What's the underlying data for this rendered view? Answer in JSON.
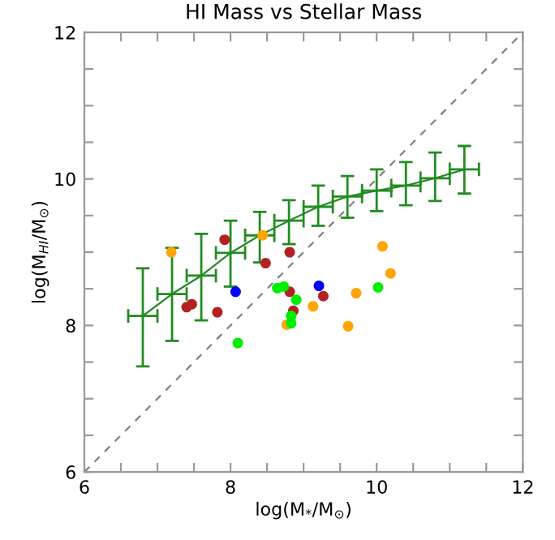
{
  "chart_data": {
    "type": "scatter",
    "title": "HI Mass vs Stellar Mass",
    "xlabel": "log(M$_{*}$/M$_{⊙}$)",
    "ylabel": "log(M$_{HI}$/M$_{⊙}$)",
    "xlim": [
      6,
      12
    ],
    "ylim": [
      6,
      12
    ],
    "xticks": [
      6,
      {
        "value": 6.5,
        "label": null
      },
      {
        "value": 7,
        "label": null
      },
      {
        "value": 7.5,
        "label": null
      },
      8,
      {
        "value": 8.5,
        "label": null
      },
      {
        "value": 9,
        "label": null
      },
      {
        "value": 9.5,
        "label": null
      },
      10,
      {
        "value": 10.5,
        "label": null
      },
      {
        "value": 11,
        "label": null
      },
      {
        "value": 11.5,
        "label": null
      },
      12
    ],
    "yticks": [
      6,
      {
        "value": 6.5,
        "label": null
      },
      {
        "value": 7,
        "label": null
      },
      {
        "value": 7.5,
        "label": null
      },
      8,
      {
        "value": 8.5,
        "label": null
      },
      {
        "value": 9,
        "label": null
      },
      {
        "value": 9.5,
        "label": null
      },
      10,
      {
        "value": 10.5,
        "label": null
      },
      {
        "value": 11,
        "label": null
      },
      {
        "value": 11.5,
        "label": null
      },
      12
    ],
    "grid": false,
    "legend": false,
    "marker": "circle",
    "series": [
      {
        "type": "line",
        "color": "#808080",
        "line_style": "dashed",
        "marker": "none",
        "x": [
          6,
          12
        ],
        "values": [
          6,
          12
        ]
      },
      {
        "type": "line",
        "color": "#228b22",
        "line_style": "solid",
        "marker": "none",
        "x": [
          6.8,
          7.2,
          7.6,
          8.0,
          8.4,
          8.8,
          9.2,
          9.6,
          10.0,
          10.4,
          10.8,
          11.2
        ],
        "values": [
          8.13,
          8.43,
          8.68,
          8.99,
          9.23,
          9.43,
          9.62,
          9.76,
          9.84,
          9.91,
          10.01,
          10.13
        ],
        "errors": [
          [
            7.44,
            8.78
          ],
          [
            7.79,
            9.06
          ],
          [
            8.07,
            9.25
          ],
          [
            8.53,
            9.43
          ],
          [
            8.86,
            9.55
          ],
          [
            9.11,
            9.71
          ],
          [
            9.36,
            9.91
          ],
          [
            9.47,
            10.04
          ],
          [
            9.56,
            10.13
          ],
          [
            9.64,
            10.23
          ],
          [
            9.7,
            10.36
          ],
          [
            9.8,
            10.45
          ]
        ],
        "xerrors": [
          [
            6.6,
            7.0
          ],
          [
            7.0,
            7.4
          ],
          [
            7.4,
            7.8
          ],
          [
            7.8,
            8.2
          ],
          [
            8.2,
            8.6
          ],
          [
            8.6,
            9.0
          ],
          [
            9.0,
            9.4
          ],
          [
            9.4,
            9.8
          ],
          [
            9.8,
            10.2
          ],
          [
            10.2,
            10.6
          ],
          [
            10.6,
            11.0
          ],
          [
            11.0,
            11.4
          ]
        ]
      },
      {
        "color": "#ffa500",
        "x": [
          7.19,
          8.44,
          10.08,
          10.19,
          9.72,
          9.13,
          8.77,
          9.61
        ],
        "values": [
          9.0,
          9.23,
          9.08,
          8.71,
          8.44,
          8.26,
          8.01,
          7.99
        ]
      },
      {
        "color": "#b22222",
        "x": [
          7.92,
          8.81,
          8.48,
          8.81,
          9.27,
          8.86,
          7.47,
          7.4,
          7.82
        ],
        "values": [
          9.17,
          9.0,
          8.85,
          8.46,
          8.4,
          8.2,
          8.29,
          8.25,
          8.18
        ]
      },
      {
        "color": "#0000ff",
        "x": [
          8.07,
          9.21
        ],
        "values": [
          8.46,
          8.54
        ]
      },
      {
        "color": "#00ee00",
        "x": [
          8.1,
          8.64,
          8.73,
          8.9,
          8.83,
          8.83,
          10.02
        ],
        "values": [
          7.76,
          8.51,
          8.53,
          8.35,
          8.13,
          8.03,
          8.52
        ]
      }
    ]
  }
}
